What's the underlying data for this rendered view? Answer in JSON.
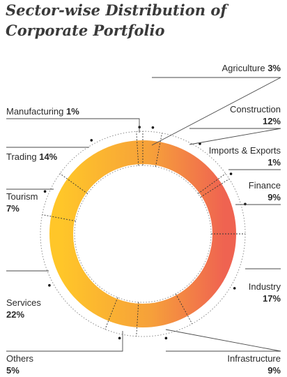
{
  "chart_data": {
    "type": "pie",
    "title": [
      "Sector-wise Distribution of",
      "Corporate Portfolio"
    ],
    "slices": [
      {
        "label": "Agriculture",
        "value": 3,
        "display": "3%"
      },
      {
        "label": "Construction",
        "value": 12,
        "display": "12%"
      },
      {
        "label": "Imports & Exports",
        "value": 1,
        "display": "1%"
      },
      {
        "label": "Finance",
        "value": 9,
        "display": "9%"
      },
      {
        "label": "Industry",
        "value": 17,
        "display": "17%"
      },
      {
        "label": "Infrastructure",
        "value": 9,
        "display": "9%"
      },
      {
        "label": "Others",
        "value": 5,
        "display": "5%"
      },
      {
        "label": "Services",
        "value": 22,
        "display": "22%"
      },
      {
        "label": "Tourism",
        "value": 7,
        "display": "7%"
      },
      {
        "label": "Trading",
        "value": 14,
        "display": "14%"
      },
      {
        "label": "Manufacturing",
        "value": 1,
        "display": "1%"
      }
    ],
    "colors": {
      "gradient_left": "#FFC629",
      "gradient_mid": "#F59A3A",
      "gradient_right": "#EF6351"
    }
  }
}
